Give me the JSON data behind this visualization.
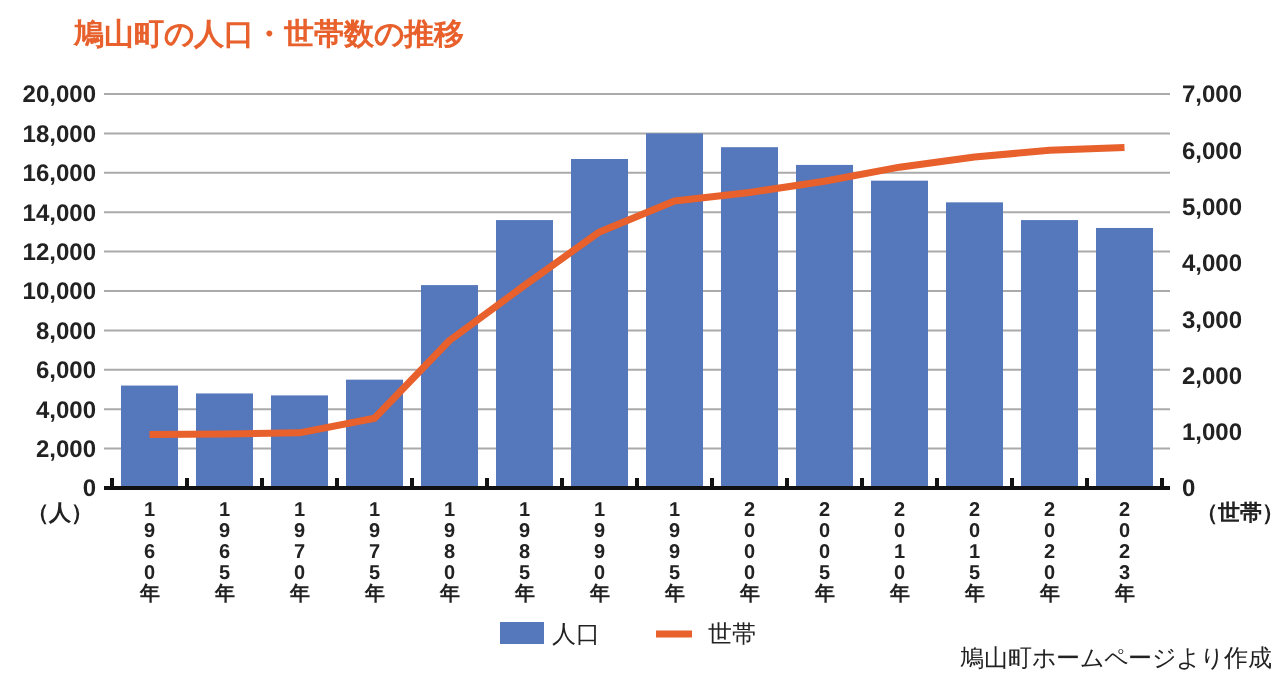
{
  "chart_data": {
    "type": "bar",
    "title": "鳩山町の人口・世帯数の推移",
    "ylabel": "（人）",
    "y2label": "（世帯）",
    "categories": [
      "1960年",
      "1965年",
      "1970年",
      "1975年",
      "1980年",
      "1985年",
      "1990年",
      "1995年",
      "2000年",
      "2005年",
      "2010年",
      "2015年",
      "2020年",
      "2023年"
    ],
    "series": [
      {
        "name": "人口",
        "color": "#5577bb",
        "values": [
          5200,
          4800,
          4700,
          5500,
          10300,
          13600,
          16700,
          18000,
          17300,
          16400,
          15600,
          14500,
          13600,
          13200
        ]
      },
      {
        "name": "世帯",
        "type": "line",
        "axis": "y2",
        "color": "#e8602c",
        "values": [
          950,
          960,
          980,
          1240,
          2620,
          3600,
          4550,
          5100,
          5250,
          5450,
          5700,
          5880,
          6000,
          6050
        ]
      }
    ],
    "ylim": [
      0,
      20000
    ],
    "yticks": [
      0,
      {
        "value": 2000,
        "label": "2,000"
      },
      {
        "value": 4000,
        "label": "4,000"
      },
      {
        "value": 6000,
        "label": "6,000"
      },
      {
        "value": 8000,
        "label": "8,000"
      },
      {
        "value": 10000,
        "label": "10,000"
      },
      {
        "value": 12000,
        "label": "12,000"
      },
      {
        "value": 14000,
        "label": "14,000"
      },
      {
        "value": 16000,
        "label": "16,000"
      },
      {
        "value": 18000,
        "label": "18,000"
      },
      {
        "value": 20000,
        "label": "20,000"
      }
    ],
    "y2lim": [
      0,
      7000
    ],
    "y2ticks": [
      0,
      {
        "value": 1000,
        "label": "1,000"
      },
      {
        "value": 2000,
        "label": "2,000"
      },
      {
        "value": 3000,
        "label": "3,000"
      },
      {
        "value": 4000,
        "label": "4,000"
      },
      {
        "value": 5000,
        "label": "5,000"
      },
      {
        "value": 6000,
        "label": "6,000"
      },
      {
        "value": 7000,
        "label": "7,000"
      }
    ],
    "grid": "y",
    "legend": "bottom",
    "marker": "none",
    "line_style": "solid",
    "annotations": [
      "鳩山町ホームページより作成"
    ]
  }
}
